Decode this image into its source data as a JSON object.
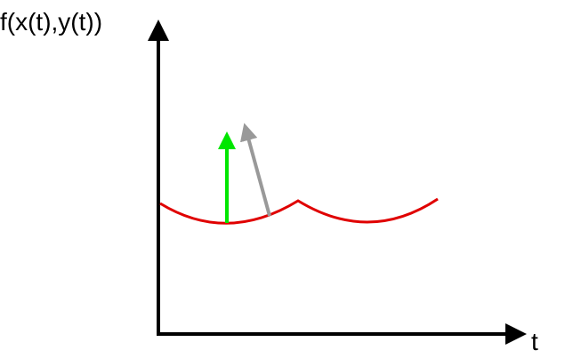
{
  "labels": {
    "y_axis": "f(x(t),y(t))",
    "x_axis": "t"
  }
}
